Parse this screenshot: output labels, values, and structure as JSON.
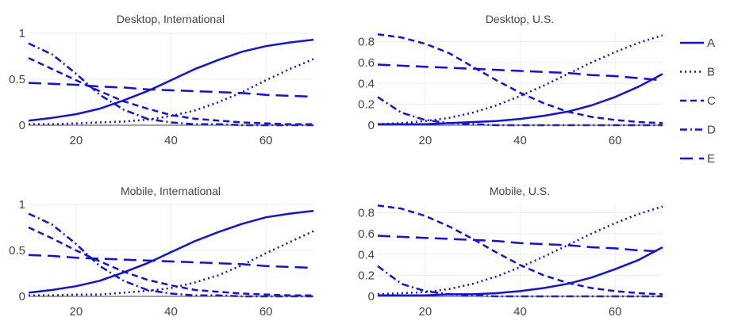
{
  "colors": {
    "series": "#1010e8",
    "grid": "#eeeeee",
    "text": "#444444"
  },
  "legend": {
    "placement": "right",
    "items": [
      {
        "name": "A",
        "dash": "solid"
      },
      {
        "name": "B",
        "dash": "dot"
      },
      {
        "name": "C",
        "dash": "dash"
      },
      {
        "name": "D",
        "dash": "dashdot"
      },
      {
        "name": "E",
        "dash": "longdash"
      }
    ]
  },
  "chart_data": [
    {
      "type": "line",
      "title": "Desktop, International",
      "xlim": [
        10,
        70
      ],
      "ylim": [
        0,
        1
      ],
      "xticks": [
        20,
        40,
        60
      ],
      "yticks": [
        0,
        0.5,
        1
      ],
      "ytick_labels": [
        "0",
        "0.5",
        "1"
      ],
      "x": [
        10,
        15,
        20,
        25,
        30,
        35,
        40,
        45,
        50,
        55,
        60,
        65,
        70
      ],
      "series": [
        {
          "name": "A",
          "values": [
            0.05,
            0.08,
            0.12,
            0.18,
            0.27,
            0.37,
            0.49,
            0.61,
            0.71,
            0.8,
            0.86,
            0.9,
            0.93
          ]
        },
        {
          "name": "B",
          "values": [
            0.01,
            0.01,
            0.02,
            0.03,
            0.04,
            0.06,
            0.1,
            0.16,
            0.25,
            0.36,
            0.49,
            0.61,
            0.72
          ]
        },
        {
          "name": "C",
          "values": [
            0.73,
            0.61,
            0.49,
            0.37,
            0.26,
            0.18,
            0.11,
            0.07,
            0.05,
            0.03,
            0.02,
            0.01,
            0.01
          ]
        },
        {
          "name": "D",
          "values": [
            0.89,
            0.77,
            0.56,
            0.33,
            0.17,
            0.07,
            0.03,
            0.01,
            0.01,
            0.0,
            0.0,
            0.0,
            0.0
          ]
        },
        {
          "name": "E",
          "values": [
            0.46,
            0.45,
            0.44,
            0.42,
            0.41,
            0.39,
            0.38,
            0.37,
            0.36,
            0.35,
            0.33,
            0.32,
            0.31
          ]
        }
      ]
    },
    {
      "type": "line",
      "title": "Desktop, U.S.",
      "xlim": [
        10,
        70
      ],
      "ylim": [
        0,
        0.88
      ],
      "xticks": [
        20,
        40,
        60
      ],
      "yticks": [
        0,
        0.2,
        0.4,
        0.6,
        0.8
      ],
      "ytick_labels": [
        "0",
        "0.2",
        "0.4",
        "0.6",
        "0.8"
      ],
      "x": [
        10,
        15,
        20,
        25,
        30,
        35,
        40,
        45,
        50,
        55,
        60,
        65,
        70
      ],
      "series": [
        {
          "name": "A",
          "values": [
            0.01,
            0.01,
            0.01,
            0.02,
            0.03,
            0.04,
            0.06,
            0.09,
            0.13,
            0.19,
            0.27,
            0.37,
            0.49
          ]
        },
        {
          "name": "B",
          "values": [
            0.01,
            0.02,
            0.04,
            0.07,
            0.12,
            0.19,
            0.28,
            0.38,
            0.49,
            0.6,
            0.7,
            0.79,
            0.86
          ]
        },
        {
          "name": "C",
          "values": [
            0.87,
            0.84,
            0.78,
            0.69,
            0.56,
            0.43,
            0.31,
            0.21,
            0.13,
            0.08,
            0.05,
            0.03,
            0.02
          ]
        },
        {
          "name": "D",
          "values": [
            0.27,
            0.12,
            0.05,
            0.02,
            0.01,
            0.0,
            0.0,
            0.0,
            0.0,
            0.0,
            0.0,
            0.0,
            0.0
          ]
        },
        {
          "name": "E",
          "values": [
            0.58,
            0.57,
            0.56,
            0.55,
            0.54,
            0.53,
            0.52,
            0.51,
            0.5,
            0.48,
            0.47,
            0.45,
            0.43
          ]
        }
      ]
    },
    {
      "type": "line",
      "title": "Mobile, International",
      "xlim": [
        10,
        70
      ],
      "ylim": [
        0,
        1
      ],
      "xticks": [
        20,
        40,
        60
      ],
      "yticks": [
        0,
        0.5,
        1
      ],
      "ytick_labels": [
        "0",
        "0.5",
        "1"
      ],
      "x": [
        10,
        15,
        20,
        25,
        30,
        35,
        40,
        45,
        50,
        55,
        60,
        65,
        70
      ],
      "series": [
        {
          "name": "A",
          "values": [
            0.04,
            0.07,
            0.11,
            0.17,
            0.26,
            0.36,
            0.48,
            0.6,
            0.7,
            0.79,
            0.86,
            0.9,
            0.93
          ]
        },
        {
          "name": "B",
          "values": [
            0.01,
            0.01,
            0.02,
            0.02,
            0.04,
            0.06,
            0.09,
            0.15,
            0.23,
            0.34,
            0.47,
            0.59,
            0.71
          ]
        },
        {
          "name": "C",
          "values": [
            0.75,
            0.63,
            0.5,
            0.38,
            0.27,
            0.18,
            0.12,
            0.07,
            0.05,
            0.03,
            0.02,
            0.01,
            0.01
          ]
        },
        {
          "name": "D",
          "values": [
            0.9,
            0.78,
            0.57,
            0.33,
            0.17,
            0.07,
            0.03,
            0.01,
            0.01,
            0.0,
            0.0,
            0.0,
            0.0
          ]
        },
        {
          "name": "E",
          "values": [
            0.45,
            0.44,
            0.42,
            0.41,
            0.4,
            0.39,
            0.38,
            0.37,
            0.36,
            0.35,
            0.33,
            0.32,
            0.31
          ]
        }
      ]
    },
    {
      "type": "line",
      "title": "Mobile, U.S.",
      "xlim": [
        10,
        70
      ],
      "ylim": [
        0,
        0.88
      ],
      "xticks": [
        20,
        40,
        60
      ],
      "yticks": [
        0,
        0.2,
        0.4,
        0.6,
        0.8
      ],
      "ytick_labels": [
        "0",
        "0.2",
        "0.4",
        "0.6",
        "0.8"
      ],
      "x": [
        10,
        15,
        20,
        25,
        30,
        35,
        40,
        45,
        50,
        55,
        60,
        65,
        70
      ],
      "series": [
        {
          "name": "A",
          "values": [
            0.01,
            0.01,
            0.01,
            0.02,
            0.02,
            0.03,
            0.05,
            0.08,
            0.12,
            0.18,
            0.26,
            0.35,
            0.47
          ]
        },
        {
          "name": "B",
          "values": [
            0.02,
            0.03,
            0.04,
            0.07,
            0.12,
            0.19,
            0.28,
            0.38,
            0.49,
            0.6,
            0.7,
            0.79,
            0.86
          ]
        },
        {
          "name": "C",
          "values": [
            0.87,
            0.84,
            0.77,
            0.67,
            0.55,
            0.42,
            0.3,
            0.2,
            0.13,
            0.08,
            0.05,
            0.03,
            0.02
          ]
        },
        {
          "name": "D",
          "values": [
            0.29,
            0.12,
            0.05,
            0.02,
            0.01,
            0.0,
            0.0,
            0.0,
            0.0,
            0.0,
            0.0,
            0.0,
            0.0
          ]
        },
        {
          "name": "E",
          "values": [
            0.58,
            0.57,
            0.56,
            0.55,
            0.54,
            0.53,
            0.51,
            0.5,
            0.49,
            0.47,
            0.46,
            0.44,
            0.43
          ]
        }
      ]
    }
  ]
}
